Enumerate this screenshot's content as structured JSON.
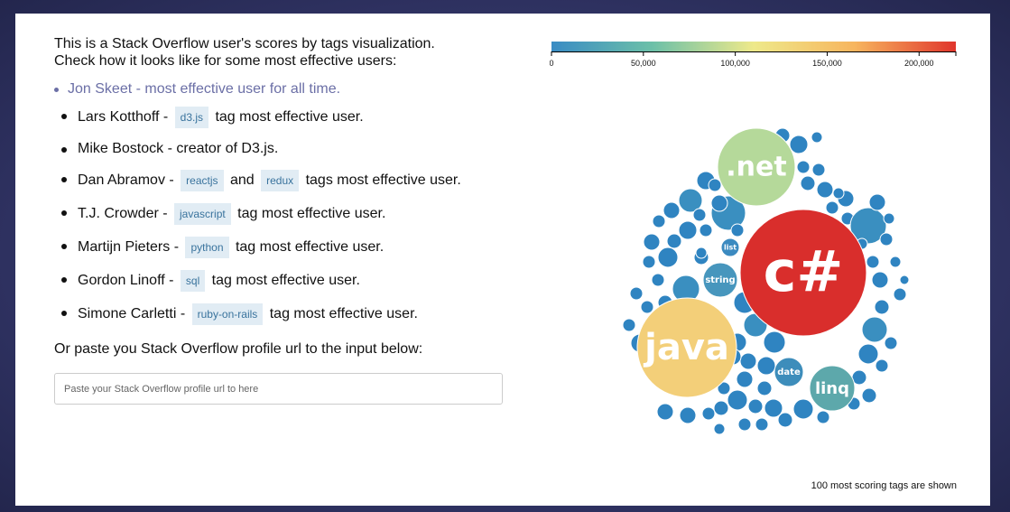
{
  "intro": {
    "line1": "This is a Stack Overflow user's scores by tags visualization.",
    "line2": "Check how it looks like for some most effective users:"
  },
  "users": [
    {
      "text": "Jon Skeet - most effective user for all time.",
      "active": true
    },
    {
      "name": "Lars Kotthoff - ",
      "tags": [
        "d3.js"
      ],
      "suffix": " tag most effective user."
    },
    {
      "name": "Mike Bostock - creator of D3.js."
    },
    {
      "name": "Dan Abramov - ",
      "tags": [
        "reactjs",
        "redux"
      ],
      "joiner": " and ",
      "suffix": " tags most effective user."
    },
    {
      "name": "T.J. Crowder - ",
      "tags": [
        "javascript"
      ],
      "suffix": " tag most effective user."
    },
    {
      "name": "Martijn Pieters - ",
      "tags": [
        "python"
      ],
      "suffix": " tag most effective user."
    },
    {
      "name": "Gordon Linoff - ",
      "tags": [
        "sql"
      ],
      "suffix": " tag most effective user."
    },
    {
      "name": "Simone Carletti - ",
      "tags": [
        "ruby-on-rails"
      ],
      "suffix": " tag most effective user."
    }
  ],
  "paste_label": "Or paste you Stack Overflow profile url to the input below:",
  "input": {
    "placeholder": "Paste your Stack Overflow profile url to here",
    "value": ""
  },
  "legend": {
    "ticks": [
      "0",
      "50,000",
      "100,000",
      "150,000",
      "200,000"
    ],
    "tick_values": [
      0,
      50000,
      100000,
      150000,
      200000
    ],
    "max": 220000,
    "colors": [
      "#3a8cc4",
      "#6cc0a8",
      "#eee98a",
      "#f7b55e",
      "#e0352c"
    ]
  },
  "footnote": "100 most scoring tags are shown",
  "bubble_labels": {
    "csharp": "c#",
    "java": "java",
    "net": ".net",
    "linq": "linq",
    "string": "string",
    "date": "date",
    "list": "list"
  },
  "bubble_colors": {
    "csharp": "#d92e2c",
    "java": "#f3cf79",
    "net": "#b5d99a",
    "linq": "#5da8ab",
    "string": "#4796bd",
    "date": "#3d8dbb",
    "list": "#3b8ac0",
    "small": "#2f84c1",
    "medium": "#3a8fc0"
  }
}
